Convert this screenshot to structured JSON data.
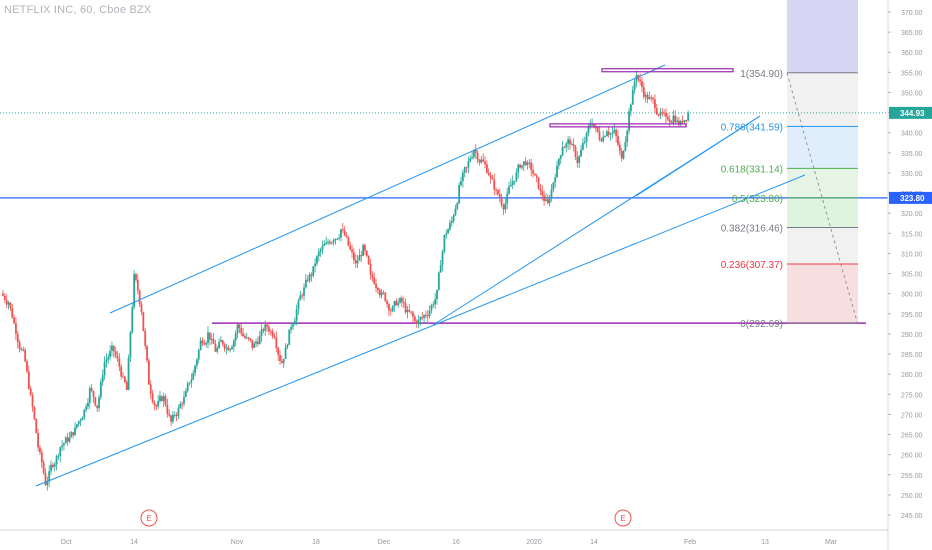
{
  "header": {
    "title": "NETFLIX INC, 60, Cboe BZX"
  },
  "colors": {
    "up": "#26a69a",
    "down": "#ef5350",
    "trend": "#2196f3",
    "hline": "#9c27b0",
    "price_line": "#2962ff",
    "last_price": "#26a69a",
    "fib_1": "#787b86",
    "fib_0786": "#2196f3",
    "fib_0618": "#4caf50",
    "fib_05": "#4caf50",
    "fib_0382": "#787b86",
    "fib_0236": "#f23645",
    "fib_0": "#787b86"
  },
  "chart_data": {
    "type": "candlestick",
    "y_axis": {
      "range": [
        243,
        373
      ],
      "ticks": [
        "370.00",
        "365.00",
        "360.00",
        "355.00",
        "350.00",
        "345.00",
        "340.00",
        "335.00",
        "330.00",
        "325.00",
        "320.00",
        "315.00",
        "310.00",
        "305.00",
        "300.00",
        "295.00",
        "290.00",
        "285.00",
        "280.00",
        "275.00",
        "270.00",
        "265.00",
        "260.00",
        "255.00",
        "250.00",
        "245.00"
      ]
    },
    "x_axis": {
      "ticks": [
        "Oct",
        "14",
        "Nov",
        "18",
        "Dec",
        "16",
        "2020",
        "14",
        "Feb",
        "13",
        "Mar"
      ]
    },
    "price_labels": [
      {
        "value": 344.93,
        "text": "344.93",
        "color": "last_price"
      },
      {
        "value": 323.8,
        "text": "323.80",
        "color": "price_line"
      }
    ],
    "horizontal_lines": [
      {
        "name": "current-price-line",
        "value": 344.93,
        "style": "dotted",
        "color": "last_price"
      },
      {
        "name": "support-resistance-line",
        "value": 323.8,
        "style": "solid",
        "color": "price_line"
      },
      {
        "name": "fib-zero-line",
        "value": 292.69,
        "style": "solid",
        "color": "hline"
      }
    ],
    "fibonacci": {
      "levels": [
        {
          "ratio": 1,
          "price": 354.9,
          "label": "1(354.90)",
          "color": "fib_1"
        },
        {
          "ratio": 0.786,
          "price": 341.59,
          "label": "0.786(341.59)",
          "color": "fib_0786"
        },
        {
          "ratio": 0.618,
          "price": 331.14,
          "label": "0.618(331.14)",
          "color": "fib_0618"
        },
        {
          "ratio": 0.5,
          "price": 323.8,
          "label": "0.5(323.80)",
          "color": "fib_05"
        },
        {
          "ratio": 0.382,
          "price": 316.46,
          "label": "0.382(316.46)",
          "color": "fib_0382"
        },
        {
          "ratio": 0.236,
          "price": 307.37,
          "label": "0.236(307.37)",
          "color": "fib_0236"
        },
        {
          "ratio": 0,
          "price": 292.69,
          "label": "0(292.69)",
          "color": "fib_0"
        }
      ],
      "zones": [
        {
          "from": 373.0,
          "to": 354.9,
          "fill": "#c8c8f0"
        },
        {
          "from": 354.9,
          "to": 341.59,
          "fill": "#ececec"
        },
        {
          "from": 341.59,
          "to": 331.14,
          "fill": "#d4e8f8"
        },
        {
          "from": 331.14,
          "to": 323.8,
          "fill": "#dcf0dc"
        },
        {
          "from": 323.8,
          "to": 316.46,
          "fill": "#d4f0d4"
        },
        {
          "from": 316.46,
          "to": 307.37,
          "fill": "#ececec"
        },
        {
          "from": 307.37,
          "to": 292.69,
          "fill": "#f6d4d4"
        }
      ]
    },
    "earnings_markers": [
      {
        "label": "E"
      },
      {
        "label": "E"
      }
    ],
    "close_series": [
      298,
      291,
      285,
      274,
      262,
      253,
      258,
      262,
      264,
      266,
      270,
      276,
      272,
      283,
      286,
      282,
      276,
      304,
      296,
      278,
      272,
      274,
      268,
      271,
      275,
      280,
      288,
      290,
      286,
      288,
      287,
      292,
      289,
      287,
      289,
      292,
      290,
      283,
      290,
      296,
      301,
      305,
      310,
      312,
      314,
      316,
      312,
      307,
      311,
      304,
      302,
      299,
      296,
      298,
      295,
      293,
      294,
      296,
      300,
      314,
      318,
      326,
      331,
      336,
      333,
      330,
      325,
      322,
      327,
      331,
      333,
      330,
      325,
      322,
      330,
      337,
      338,
      333,
      338,
      343,
      339,
      341,
      340,
      333,
      345,
      355,
      350,
      348,
      345,
      343,
      344,
      342,
      344.93
    ]
  }
}
